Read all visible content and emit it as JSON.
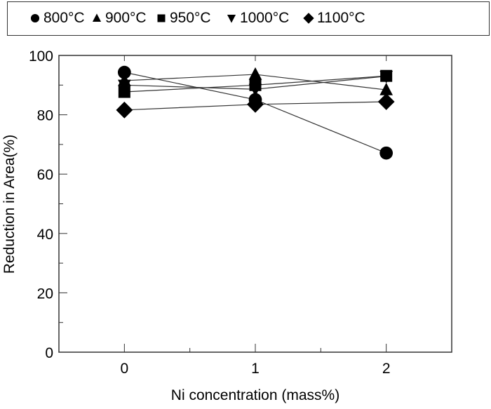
{
  "chart_data": {
    "type": "line",
    "title": "",
    "xlabel": "Ni concentration (mass%)",
    "ylabel": "Reduction in Area(%)",
    "xlim": [
      -0.5,
      2.5
    ],
    "ylim": [
      0,
      100
    ],
    "x": [
      0,
      1,
      2
    ],
    "x_ticks": [
      0,
      1,
      2
    ],
    "x_tick_labels": [
      "0",
      "1",
      "2"
    ],
    "x_minor_ticks": [
      0.5,
      1.5
    ],
    "y_ticks": [
      0,
      20,
      40,
      60,
      80,
      100
    ],
    "y_tick_labels": [
      "0",
      "20",
      "40",
      "60",
      "80",
      "100"
    ],
    "y_minor_ticks": [
      10,
      30,
      50,
      70,
      90
    ],
    "grid": false,
    "legend_position": "top",
    "series": [
      {
        "name": "800°C",
        "marker": "circle",
        "values": [
          94.3,
          85.1,
          67.1
        ]
      },
      {
        "name": "900°C",
        "marker": "triangle-up",
        "values": [
          91.5,
          93.6,
          88.4
        ]
      },
      {
        "name": "950°C",
        "marker": "square",
        "values": [
          87.7,
          90.0,
          93.1
        ]
      },
      {
        "name": "1000°C",
        "marker": "triangle-down",
        "values": [
          90.0,
          88.6,
          93.0
        ]
      },
      {
        "name": "1100°C",
        "marker": "diamond",
        "values": [
          81.6,
          83.5,
          84.4
        ]
      }
    ],
    "colors": {
      "marker": "#000000",
      "line": "#333333",
      "axis": "#333333"
    }
  }
}
